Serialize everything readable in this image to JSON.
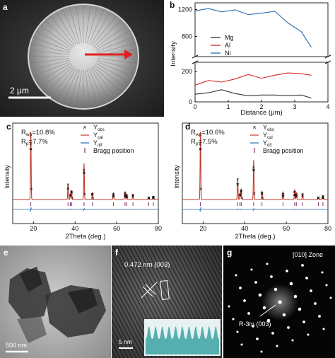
{
  "panels": {
    "a": {
      "label": "a",
      "scalebar": "2 μm"
    },
    "b": {
      "label": "b"
    },
    "c": {
      "label": "c"
    },
    "d": {
      "label": "d"
    },
    "e": {
      "label": "e",
      "scalebar": "500 nm"
    },
    "f": {
      "label": "f",
      "scalebar": "5 nm",
      "annotation": "0.472 nm  (003)"
    },
    "g": {
      "label": "g",
      "zone": "[010] Zone",
      "annotation": "R-3m (003)"
    }
  },
  "colors": {
    "Mg": "#333333",
    "Al": "#d62728",
    "Ni": "#2b6cb0",
    "obs": "#111111",
    "cal": "#c0392b",
    "dif": "#2b6cb0",
    "bragg": "#7b2d6b"
  },
  "chart_data": [
    {
      "type": "line",
      "panel": "b",
      "xlabel": "Distance (μm)",
      "ylabel": "Intensity",
      "xlim": [
        0,
        4
      ],
      "xticks": [
        "0",
        "1",
        "2",
        "3",
        "4"
      ],
      "axis_break": true,
      "upper": {
        "ylim": [
          500,
          1300
        ],
        "yticks": [
          "800",
          "1200"
        ]
      },
      "lower": {
        "ylim": [
          0,
          260
        ],
        "yticks": [
          "0",
          "200"
        ]
      },
      "legend": [
        "Mg",
        "Al",
        "Ni"
      ],
      "series": [
        {
          "name": "Ni",
          "x": [
            0.0,
            0.4,
            0.8,
            1.2,
            1.6,
            2.0,
            2.4,
            2.8,
            3.2,
            3.5
          ],
          "values": [
            1180,
            1215,
            1165,
            1195,
            1125,
            1145,
            1175,
            1000,
            870,
            640
          ]
        },
        {
          "name": "Al",
          "x": [
            0.0,
            0.4,
            0.8,
            1.2,
            1.6,
            2.0,
            2.4,
            2.8,
            3.2,
            3.5
          ],
          "values": [
            110,
            140,
            130,
            150,
            180,
            155,
            175,
            190,
            185,
            175
          ]
        },
        {
          "name": "Mg",
          "x": [
            0.0,
            0.4,
            0.8,
            1.2,
            1.6,
            2.0,
            2.4,
            2.8,
            3.2,
            3.5
          ],
          "values": [
            50,
            60,
            80,
            55,
            40,
            45,
            45,
            40,
            45,
            25
          ]
        }
      ]
    },
    {
      "type": "line",
      "panel": "c",
      "xlabel": "2Theta (deg.)",
      "ylabel": "Intensity",
      "xlim": [
        10,
        80
      ],
      "xticks": [
        "20",
        "40",
        "60",
        "80"
      ],
      "stats": [
        "R",
        "wp",
        "=10.8%",
        "R",
        "p",
        "=7.7%"
      ],
      "legend": [
        {
          "sym": "×",
          "text": "Y",
          "sub": "obs"
        },
        {
          "sym": "line",
          "text": "Y",
          "sub": "cal"
        },
        {
          "sym": "line",
          "text": "Y",
          "sub": "dif"
        },
        {
          "sym": "|",
          "text": "Bragg position",
          "sub": ""
        }
      ],
      "peaks": [
        [
          18.7,
          1.0
        ],
        [
          36.6,
          0.22
        ],
        [
          37.7,
          0.08
        ],
        [
          38.3,
          0.14
        ],
        [
          44.3,
          0.53
        ],
        [
          48.3,
          0.1
        ],
        [
          58.4,
          0.1
        ],
        [
          64.0,
          0.12
        ],
        [
          64.8,
          0.08
        ],
        [
          67.8,
          0.07
        ],
        [
          75.4,
          0.03
        ],
        [
          77.6,
          0.05
        ]
      ],
      "bragg": [
        18.7,
        36.6,
        37.7,
        38.3,
        44.3,
        48.3,
        58.4,
        64.0,
        64.8,
        67.8,
        75.4,
        77.6
      ]
    },
    {
      "type": "line",
      "panel": "d",
      "xlabel": "2Theta (deg.)",
      "ylabel": "Intensity",
      "xlim": [
        10,
        80
      ],
      "xticks": [
        "20",
        "40",
        "60",
        "80"
      ],
      "stats": [
        "R",
        "wp",
        "=10.6%",
        "R",
        "p",
        "=7.5%"
      ],
      "legend": [
        {
          "sym": "×",
          "text": "Y",
          "sub": "obs"
        },
        {
          "sym": "line",
          "text": "Y",
          "sub": "cal"
        },
        {
          "sym": "line",
          "text": "Y",
          "sub": "dif"
        },
        {
          "sym": "|",
          "text": "Bragg position",
          "sub": ""
        }
      ],
      "peaks": [
        [
          18.7,
          1.0
        ],
        [
          36.6,
          0.3
        ],
        [
          37.7,
          0.09
        ],
        [
          38.3,
          0.16
        ],
        [
          44.3,
          0.58
        ],
        [
          48.3,
          0.12
        ],
        [
          58.4,
          0.11
        ],
        [
          64.0,
          0.15
        ],
        [
          64.8,
          0.1
        ],
        [
          67.8,
          0.08
        ],
        [
          75.4,
          0.03
        ],
        [
          77.6,
          0.06
        ]
      ],
      "bragg": [
        18.7,
        36.6,
        37.7,
        38.3,
        44.3,
        48.3,
        58.4,
        64.0,
        64.8,
        67.8,
        75.4,
        77.6
      ]
    }
  ]
}
